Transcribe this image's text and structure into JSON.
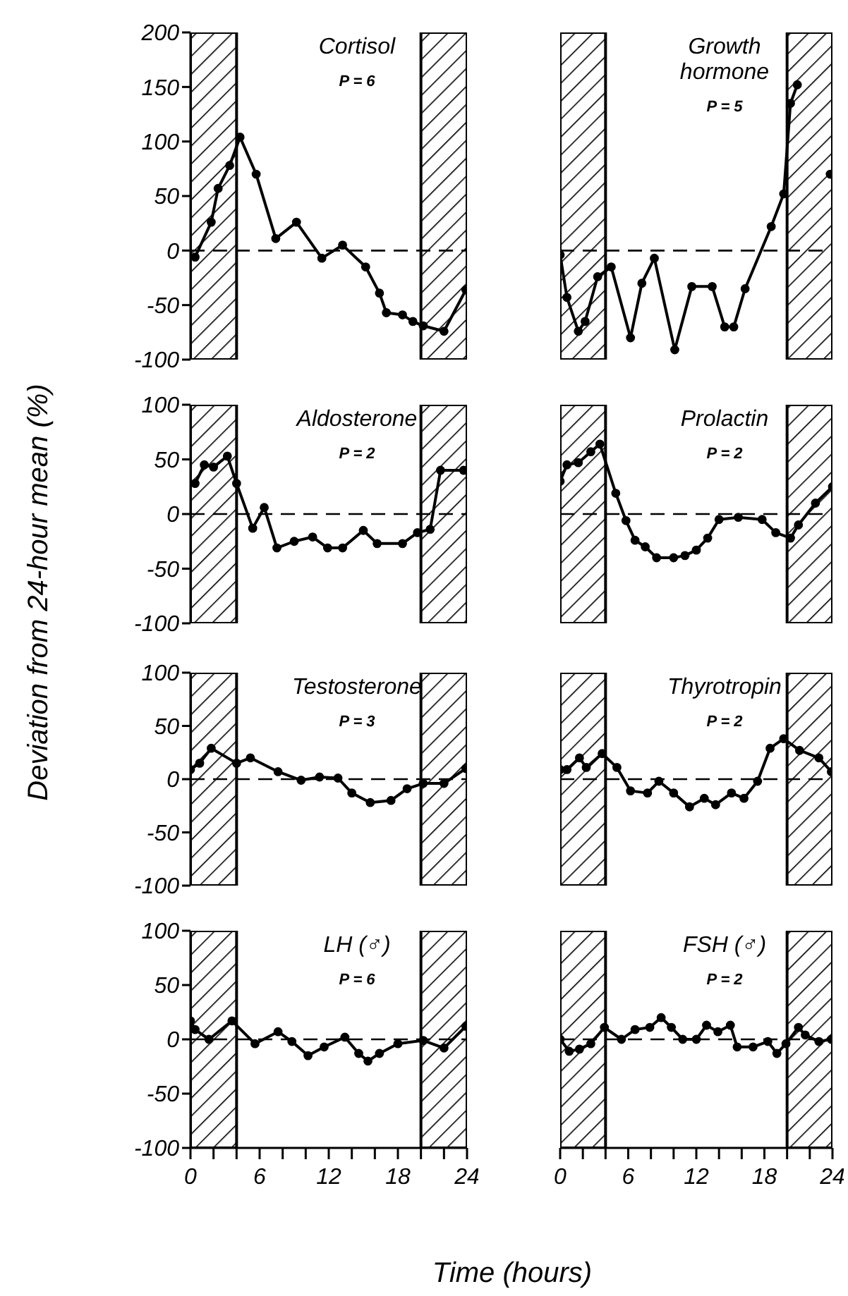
{
  "chart_data": [
    {
      "type": "line",
      "title": "Cortisol",
      "subtitle": "P = 6",
      "ylabel": "Deviation from 24-hour mean (%)",
      "color": "#000000",
      "marker": "circle",
      "tick_labels": "y",
      "xlim": [
        0,
        24
      ],
      "ylim": [
        -100,
        200
      ],
      "yticks": [
        -100,
        -50,
        0,
        50,
        100,
        150,
        200
      ],
      "x": [
        0.4,
        1.8,
        2.4,
        3.4,
        4.3,
        5.7,
        7.4,
        9.2,
        11.4,
        13.2,
        15.2,
        16.4,
        17,
        18.4,
        19.3,
        20.2,
        22,
        23.9
      ],
      "values": [
        -6,
        26,
        57,
        78,
        104,
        70,
        11,
        26,
        -7,
        5,
        -15,
        -39,
        -57,
        -59,
        -65,
        -69,
        -74,
        -36
      ],
      "ref_lines": [
        {
          "axis": "y",
          "value": 0,
          "line_style": "dashed"
        }
      ],
      "bands": [
        {
          "axis": "x",
          "from": 0,
          "to": 4
        },
        {
          "axis": "x",
          "from": 20,
          "to": 24
        }
      ]
    },
    {
      "type": "line",
      "title": "Growth hormone",
      "subtitle": "P = 5",
      "color": "#000000",
      "marker": "circle",
      "tick_labels": false,
      "xlim": [
        0,
        24
      ],
      "ylim": [
        -100,
        200
      ],
      "x": [
        0,
        0.6,
        1.6,
        2.2,
        3.3,
        4.5,
        6.2,
        7.2,
        8.3,
        10.1,
        11.6,
        13.4,
        14.5,
        15.3,
        16.3,
        18.6,
        19.7,
        20.3,
        20.9,
        21.5,
        22.2,
        23.8
      ],
      "values": [
        -4,
        -43,
        -74,
        -65,
        -24,
        -15,
        -80,
        -30,
        -7,
        -91,
        -33,
        -33,
        -70,
        -70,
        -35,
        22,
        52,
        135,
        152,
        null,
        null,
        70
      ],
      "ref_lines": [
        {
          "axis": "y",
          "value": 0,
          "line_style": "dashed"
        }
      ],
      "bands": [
        {
          "axis": "x",
          "from": 0,
          "to": 4
        },
        {
          "axis": "x",
          "from": 20,
          "to": 24
        }
      ]
    },
    {
      "type": "line",
      "title": "Aldosterone",
      "subtitle": "P = 2",
      "color": "#000000",
      "marker": "circle",
      "tick_labels": "y",
      "xlim": [
        0,
        24
      ],
      "ylim": [
        -100,
        100
      ],
      "yticks": [
        -100,
        -50,
        0,
        50,
        100
      ],
      "x": [
        0.4,
        1.2,
        2,
        3.2,
        4,
        5.4,
        6.4,
        7.5,
        9,
        10.6,
        11.9,
        13.2,
        15,
        16.2,
        18.4,
        19.7,
        20.8,
        21.7,
        23.7
      ],
      "values": [
        28,
        45,
        43,
        53,
        28,
        -13,
        6,
        -31,
        -25,
        -21,
        -31,
        -31,
        -15,
        -27,
        -27,
        -17,
        -14,
        40,
        40
      ],
      "ref_lines": [
        {
          "axis": "y",
          "value": 0,
          "line_style": "dashed"
        }
      ],
      "bands": [
        {
          "axis": "x",
          "from": 0,
          "to": 4
        },
        {
          "axis": "x",
          "from": 20,
          "to": 24
        }
      ]
    },
    {
      "type": "line",
      "title": "Prolactin",
      "subtitle": "P = 2",
      "color": "#000000",
      "marker": "circle",
      "tick_labels": false,
      "xlim": [
        0,
        24
      ],
      "ylim": [
        -100,
        100
      ],
      "x": [
        0,
        0.6,
        1.6,
        2.7,
        3.5,
        4.9,
        5.8,
        6.6,
        7.5,
        8.5,
        10,
        11,
        12,
        13,
        14,
        15.7,
        17.8,
        19,
        20.3,
        21,
        22.5,
        24
      ],
      "values": [
        30,
        45,
        47,
        57,
        64,
        19,
        -6,
        -24,
        -30,
        -40,
        -40,
        -38,
        -33,
        -22,
        -5,
        -3,
        -5,
        -17,
        -22,
        -10,
        10,
        25
      ],
      "ref_lines": [
        {
          "axis": "y",
          "value": 0,
          "line_style": "dashed"
        }
      ],
      "bands": [
        {
          "axis": "x",
          "from": 0,
          "to": 4
        },
        {
          "axis": "x",
          "from": 20,
          "to": 24
        }
      ]
    },
    {
      "type": "line",
      "title": "Testosterone",
      "subtitle": "P = 3",
      "color": "#000000",
      "marker": "circle",
      "tick_labels": "y",
      "xlim": [
        0,
        24
      ],
      "ylim": [
        -100,
        100
      ],
      "yticks": [
        -100,
        -50,
        0,
        50,
        100
      ],
      "x": [
        0,
        0.8,
        1.8,
        4,
        5.2,
        7.6,
        9.6,
        11.2,
        12.8,
        14,
        15.6,
        17.4,
        18.8,
        20.2,
        22,
        23.9
      ],
      "values": [
        9,
        15,
        29,
        15,
        20,
        7,
        -1,
        2,
        1,
        -13,
        -22,
        -20,
        -9,
        -4,
        -4,
        10
      ],
      "ref_lines": [
        {
          "axis": "y",
          "value": 0,
          "line_style": "dashed"
        }
      ],
      "bands": [
        {
          "axis": "x",
          "from": 0,
          "to": 4
        },
        {
          "axis": "x",
          "from": 20,
          "to": 24
        }
      ]
    },
    {
      "type": "line",
      "title": "Thyrotropin",
      "subtitle": "P = 2",
      "color": "#000000",
      "marker": "circle",
      "tick_labels": false,
      "xlim": [
        0,
        24
      ],
      "ylim": [
        -100,
        100
      ],
      "x": [
        0,
        0.6,
        1.7,
        2.3,
        3.7,
        5,
        6.2,
        7.7,
        8.7,
        10,
        11.4,
        12.7,
        13.7,
        15.1,
        16.2,
        17.4,
        18.5,
        19.7,
        21.1,
        22.8,
        23.9
      ],
      "values": [
        9,
        9,
        20,
        11,
        24,
        11,
        -11,
        -13,
        -2,
        -13,
        -26,
        -18,
        -24,
        -13,
        -18,
        -2,
        29,
        38,
        27,
        20,
        7
      ],
      "ref_lines": [
        {
          "axis": "y",
          "value": 0,
          "line_style": "dashed"
        }
      ],
      "bands": [
        {
          "axis": "x",
          "from": 0,
          "to": 4
        },
        {
          "axis": "x",
          "from": 20,
          "to": 24
        }
      ]
    },
    {
      "type": "line",
      "title": "LH (♂)",
      "subtitle": "P = 6",
      "xlabel": "Time (hours)",
      "color": "#000000",
      "marker": "circle",
      "xlim": [
        0,
        24
      ],
      "ylim": [
        -100,
        100
      ],
      "yticks": [
        -100,
        -50,
        0,
        50,
        100
      ],
      "xticks": [
        0,
        {
          "value": 2,
          "label": null
        },
        {
          "value": 4,
          "label": null
        },
        6,
        {
          "value": 8,
          "label": null
        },
        {
          "value": 10,
          "label": null
        },
        12,
        {
          "value": 14,
          "label": null
        },
        {
          "value": 16,
          "label": null
        },
        18,
        {
          "value": 20,
          "label": null
        },
        {
          "value": 22,
          "label": null
        },
        24
      ],
      "x": [
        0,
        0.4,
        1.6,
        3.6,
        5.6,
        7.6,
        8.8,
        10.2,
        11.6,
        13.4,
        14.6,
        15.4,
        16.4,
        18,
        20.2,
        22,
        23.9
      ],
      "values": [
        17,
        9,
        0,
        17,
        -4,
        7,
        -2,
        -15,
        -7,
        2,
        -13,
        -20,
        -13,
        -4,
        -1,
        -8,
        12
      ],
      "ref_lines": [
        {
          "axis": "y",
          "value": 0,
          "line_style": "dashed"
        }
      ],
      "bands": [
        {
          "axis": "x",
          "from": 0,
          "to": 4
        },
        {
          "axis": "x",
          "from": 20,
          "to": 24
        }
      ]
    },
    {
      "type": "line",
      "title": "FSH (♂)",
      "subtitle": "P = 2",
      "color": "#000000",
      "marker": "circle",
      "tick_labels": "x",
      "xlim": [
        0,
        24
      ],
      "ylim": [
        -100,
        100
      ],
      "xticks": [
        0,
        {
          "value": 2,
          "label": null
        },
        {
          "value": 4,
          "label": null
        },
        6,
        {
          "value": 8,
          "label": null
        },
        {
          "value": 10,
          "label": null
        },
        12,
        {
          "value": 14,
          "label": null
        },
        {
          "value": 16,
          "label": null
        },
        18,
        {
          "value": 20,
          "label": null
        },
        {
          "value": 22,
          "label": null
        },
        24
      ],
      "x": [
        0,
        0.8,
        1.7,
        2.7,
        3.9,
        5.4,
        6.6,
        7.9,
        8.9,
        9.8,
        10.8,
        12,
        12.9,
        13.9,
        15,
        15.6,
        17,
        18.3,
        19.1,
        19.9,
        21,
        21.6,
        22.8,
        23.9
      ],
      "values": [
        0,
        -11,
        -9,
        -4,
        11,
        0,
        9,
        11,
        20,
        11,
        0,
        0,
        13,
        7,
        13,
        -7,
        -7,
        -2,
        -13,
        -4,
        11,
        4,
        -2,
        0
      ],
      "ref_lines": [
        {
          "axis": "y",
          "value": 0,
          "line_style": "dashed"
        }
      ],
      "bands": [
        {
          "axis": "x",
          "from": 0,
          "to": 4
        },
        {
          "axis": "x",
          "from": 20,
          "to": 24
        }
      ]
    }
  ]
}
